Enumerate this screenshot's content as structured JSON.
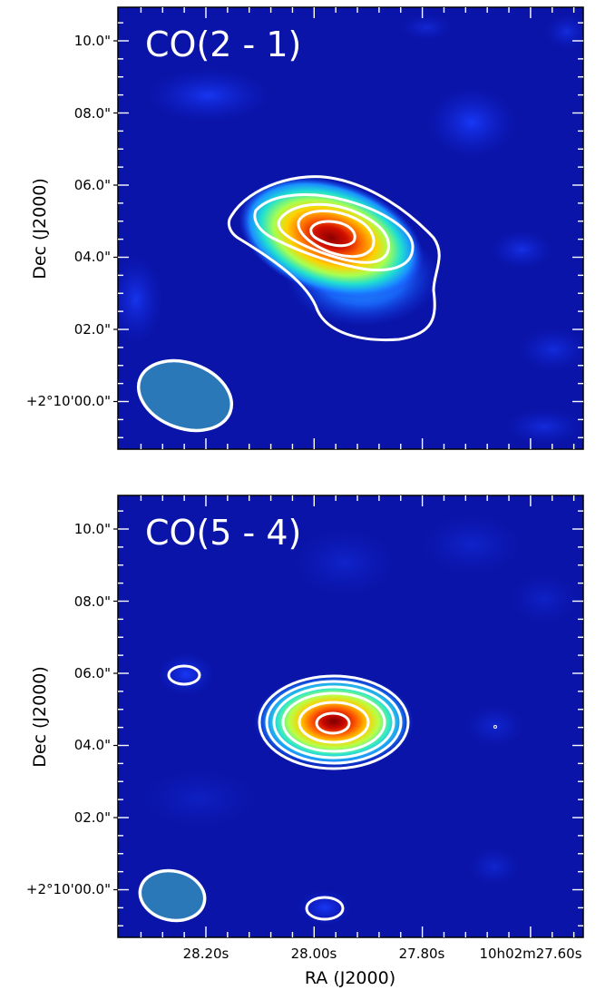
{
  "panels": [
    {
      "label": "CO(2 - 1)",
      "ylabel": "Dec (J2000)",
      "yticks": [
        "10.0\"",
        "08.0\"",
        "06.0\"",
        "04.0\"",
        "02.0\"",
        "+2°10'00.0\""
      ],
      "xticks": []
    },
    {
      "label": "CO(5 - 4)",
      "ylabel": "Dec (J2000)",
      "yticks": [
        "10.0\"",
        "08.0\"",
        "06.0\"",
        "04.0\"",
        "02.0\"",
        "+2°10'00.0\""
      ],
      "xticks": [
        "28.20s",
        "28.00s",
        "27.80s",
        "10h02m27.60s"
      ]
    }
  ],
  "xlabel": "RA (J2000)",
  "colors": {
    "background": "#0a14a8",
    "contour": "#ffffff",
    "beam_fill": "#2a78b8",
    "frame": "#000000"
  }
}
